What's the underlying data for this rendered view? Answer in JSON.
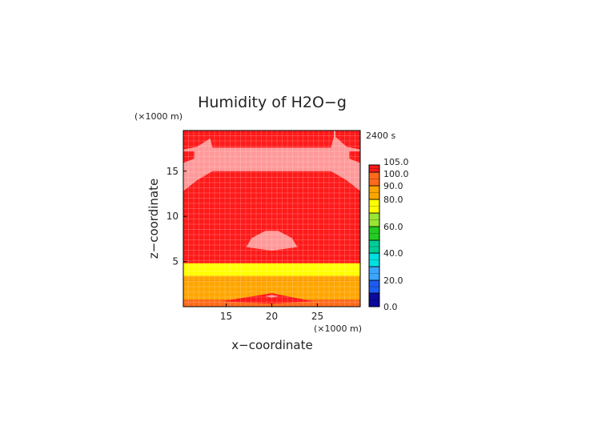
{
  "chart_data": {
    "type": "heatmap",
    "title": "Humidity of H2O−g",
    "time_label": "2400 s",
    "xlabel": "x−coordinate",
    "ylabel": "z−coordinate",
    "x_unit": "(×1000 m)",
    "y_unit": "(×1000 m)",
    "xlim": [
      10.3,
      29.7
    ],
    "ylim": [
      0,
      19.5
    ],
    "x_ticks": [
      {
        "value": 15,
        "label": "15"
      },
      {
        "value": 20,
        "label": "20"
      },
      {
        "value": 25,
        "label": "25"
      }
    ],
    "y_ticks": [
      {
        "value": 5,
        "label": "5"
      },
      {
        "value": 10,
        "label": "10"
      },
      {
        "value": 15,
        "label": "15"
      }
    ],
    "grid": true,
    "colorbar": {
      "levels": [
        0,
        10,
        20,
        30,
        40,
        50,
        60,
        70,
        80,
        90,
        100,
        105
      ],
      "colors": [
        "#0a0a9c",
        "#1c5cf0",
        "#3aa6ff",
        "#00e0e0",
        "#00cc99",
        "#22cc22",
        "#99e633",
        "#ffff00",
        "#ffa500",
        "#ff6a1a",
        "#ff1a1a",
        "#ffffff"
      ],
      "tick_labels": [
        {
          "value": 0,
          "label": "0.0"
        },
        {
          "value": 20,
          "label": "20.0"
        },
        {
          "value": 40,
          "label": "40.0"
        },
        {
          "value": 60,
          "label": "60.0"
        },
        {
          "value": 80,
          "label": "80.0"
        },
        {
          "value": 90,
          "label": "90.0"
        },
        {
          "value": 100,
          "label": "100.0"
        },
        {
          "value": 105,
          "label": "105.0"
        }
      ]
    },
    "regions": [
      {
        "name": "band-80-90",
        "color": "#ffa500",
        "points": [
          [
            10.3,
            0
          ],
          [
            29.7,
            0
          ],
          [
            29.7,
            2.9
          ],
          [
            10.3,
            2.9
          ]
        ]
      },
      {
        "name": "band-85-95",
        "color": "#ff6a1a",
        "points": [
          [
            10.3,
            0
          ],
          [
            29.7,
            0
          ],
          [
            29.7,
            0.8
          ],
          [
            10.3,
            0.8
          ]
        ]
      },
      {
        "name": "band-70-80",
        "color": "#ffff00",
        "points": [
          [
            10.3,
            3.4
          ],
          [
            29.7,
            3.4
          ],
          [
            29.7,
            4.8
          ],
          [
            10.3,
            4.8
          ]
        ]
      },
      {
        "name": "band-80-90-upper",
        "color": "#ffa500",
        "points": [
          [
            10.3,
            2.9
          ],
          [
            29.7,
            2.9
          ],
          [
            29.7,
            3.4
          ],
          [
            10.3,
            3.4
          ]
        ]
      },
      {
        "name": "band-sat-lower",
        "color": "#ff1a1a",
        "points": [
          [
            14.5,
            0.6
          ],
          [
            20,
            1.5
          ],
          [
            24.5,
            0.6
          ],
          [
            20,
            0.35
          ]
        ]
      },
      {
        "name": "band-sat-lower-hole",
        "color": "#ff9999",
        "points": [
          [
            19.3,
            1.15
          ],
          [
            20,
            1.3
          ],
          [
            20.7,
            1.15
          ],
          [
            20,
            1.0
          ]
        ]
      },
      {
        "name": "pink-mid-blob",
        "color": "#ff9999",
        "points": [
          [
            17.2,
            6.6
          ],
          [
            17.8,
            7.6
          ],
          [
            19.3,
            8.4
          ],
          [
            20.7,
            8.4
          ],
          [
            22.2,
            7.6
          ],
          [
            22.8,
            6.6
          ],
          [
            20,
            6.2
          ]
        ]
      },
      {
        "name": "pink-upper-band",
        "color": "#ff9999",
        "points": [
          [
            10.3,
            12.8
          ],
          [
            11.8,
            14
          ],
          [
            13.5,
            15
          ],
          [
            26.5,
            15
          ],
          [
            28.2,
            14
          ],
          [
            29.7,
            12.8
          ],
          [
            29.7,
            17.4
          ],
          [
            28.2,
            17.7
          ],
          [
            27,
            18.8
          ],
          [
            27,
            19.5
          ],
          [
            13.5,
            19.5
          ],
          [
            13.5,
            18.8
          ],
          [
            11.8,
            17.7
          ],
          [
            10.3,
            17.4
          ]
        ]
      },
      {
        "name": "red-top-center",
        "color": "#ff1a1a",
        "points": [
          [
            13.5,
            17.6
          ],
          [
            26.5,
            17.6
          ],
          [
            26.8,
            18.8
          ],
          [
            26.8,
            19.5
          ],
          [
            13.5,
            19.5
          ],
          [
            13.2,
            18.8
          ]
        ]
      },
      {
        "name": "red-top-left",
        "color": "#ff1a1a",
        "points": [
          [
            10.3,
            15.9
          ],
          [
            11.5,
            16.4
          ],
          [
            11.5,
            17.2
          ],
          [
            10.3,
            17.2
          ]
        ]
      },
      {
        "name": "red-top-right",
        "color": "#ff1a1a",
        "points": [
          [
            29.7,
            15.9
          ],
          [
            28.5,
            16.4
          ],
          [
            28.5,
            17.2
          ],
          [
            29.7,
            17.2
          ]
        ]
      }
    ]
  }
}
